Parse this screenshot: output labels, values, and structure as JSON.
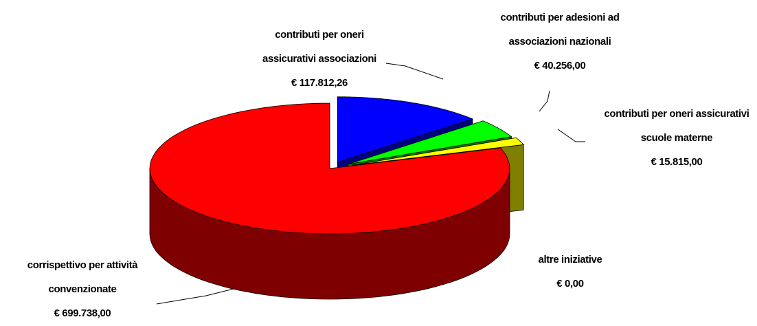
{
  "chart_data": {
    "type": "pie3d",
    "categories": [
      "contributi per oneri assicurativi associazioni",
      "contributi per adesioni ad associazioni nazionali",
      "contributi per oneri assicurativi scuole materne",
      "altre iniziative",
      "corrispettivo per attività convenzionate"
    ],
    "values": [
      117812.26,
      40256,
      15815,
      0,
      699738
    ],
    "value_labels": [
      "€ 117.812,26",
      "€ 40.256,00",
      "€ 15.815,00",
      "€ 0,00",
      "€ 699.738,00"
    ],
    "colors": [
      "#0000ff",
      "#00ff00",
      "#ffff00",
      "#808080",
      "#ff0000"
    ]
  }
}
